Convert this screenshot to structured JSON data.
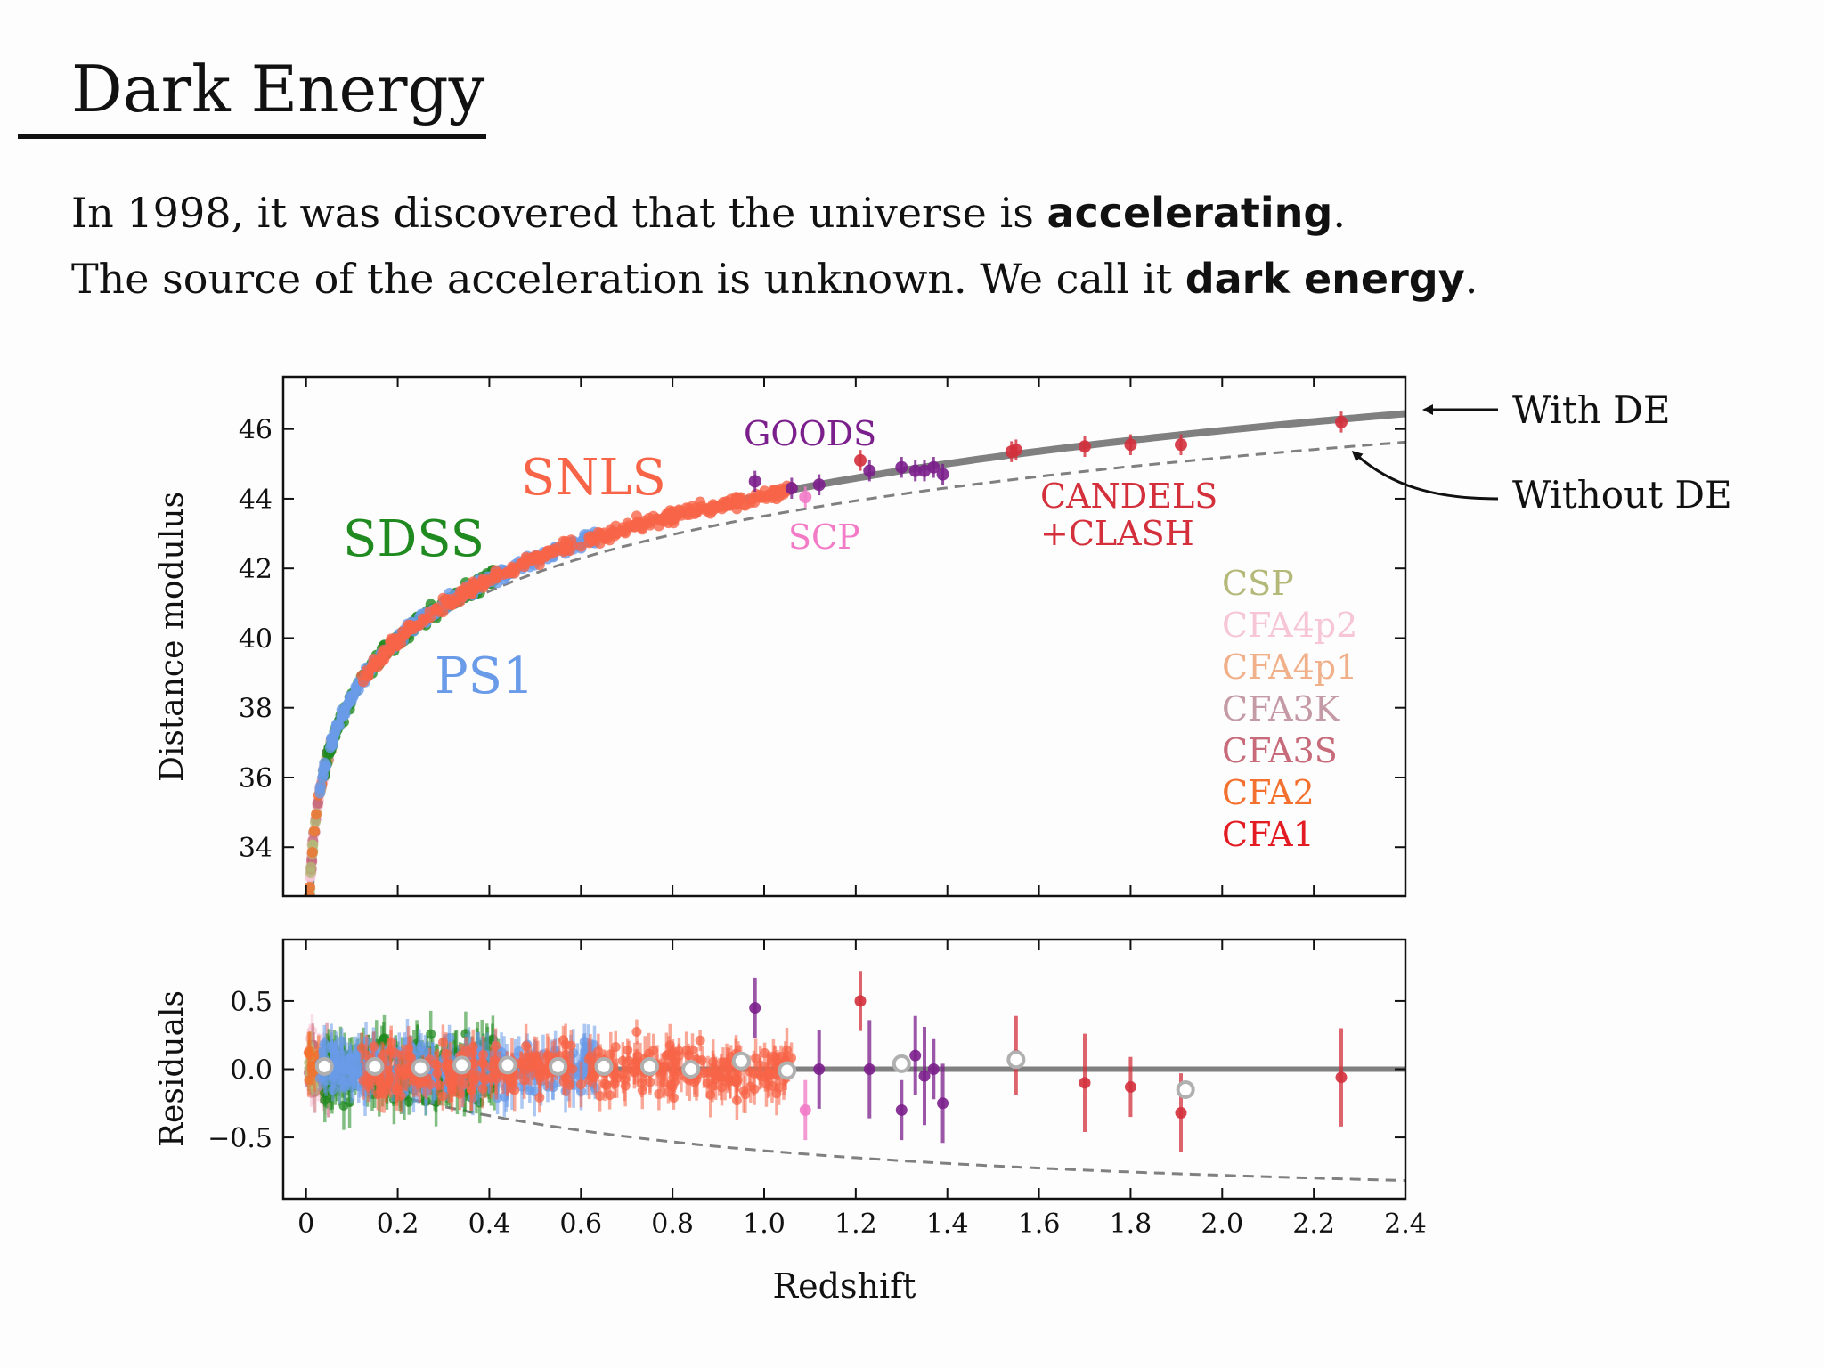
{
  "slide": {
    "title": "Dark Energy",
    "line1": {
      "pre": "In 1998, it was discovered that the universe is ",
      "bold": "accelerating",
      "post": "."
    },
    "line2": {
      "pre": "The source of the acceleration is unknown. We call it ",
      "bold": "dark energy",
      "post": "."
    }
  },
  "colors": {
    "SDSS": "#1f8a1f",
    "PS1": "#6a9be8",
    "SNLS": "#f76447",
    "GOODS": "#7b1f8c",
    "SCP": "#f27ac6",
    "CANDELS": "#d3303c",
    "CSP": "#b4b878",
    "CFA4p2": "#f6c6d6",
    "CFA4p1": "#f0b08a",
    "CFA3K": "#c49aa6",
    "CFA3S": "#c76a7a",
    "CFA2": "#f3702e",
    "CFA1": "#e31c24",
    "model": "#808080"
  },
  "chart_data": [
    {
      "type": "scatter",
      "panel": "top",
      "xlabel": "",
      "ylabel": "Distance modulus",
      "xlim": [
        -0.05,
        2.4
      ],
      "ylim": [
        32.6,
        47.5
      ],
      "yticks": [
        "34",
        "36",
        "38",
        "40",
        "42",
        "44",
        "46"
      ],
      "survey_labels": [
        {
          "text": "SDSS",
          "color_key": "SDSS"
        },
        {
          "text": "SNLS",
          "color_key": "SNLS"
        },
        {
          "text": "GOODS",
          "color_key": "GOODS"
        },
        {
          "text": "SCP",
          "color_key": "SCP"
        },
        {
          "text": "CANDELS",
          "color_key": "CANDELS"
        },
        {
          "text": "+CLASH",
          "color_key": "CANDELS"
        },
        {
          "text": "PS1",
          "color_key": "PS1"
        }
      ],
      "legend": [
        "CSP",
        "CFA4p2",
        "CFA4p1",
        "CFA3K",
        "CFA3S",
        "CFA2",
        "CFA1"
      ],
      "annotations": [
        "With DE",
        "Without DE"
      ],
      "series": [
        {
          "name": "CANDELS",
          "x": [
            1.21,
            1.54,
            1.55,
            1.7,
            1.8,
            1.91,
            2.26
          ],
          "y": [
            45.1,
            45.35,
            45.4,
            45.5,
            45.55,
            45.55,
            46.2
          ]
        },
        {
          "name": "GOODS",
          "x": [
            0.98,
            1.06,
            1.12,
            1.23,
            1.3,
            1.33,
            1.35,
            1.37,
            1.39
          ],
          "y": [
            44.5,
            44.3,
            44.4,
            44.8,
            44.9,
            44.8,
            44.8,
            44.9,
            44.7
          ]
        },
        {
          "name": "SCP",
          "x": [
            1.09
          ],
          "y": [
            44.05
          ]
        }
      ]
    },
    {
      "type": "scatter",
      "panel": "bottom",
      "xlabel": "Redshift",
      "ylabel": "Residuals",
      "xlim": [
        -0.05,
        2.4
      ],
      "ylim": [
        -0.95,
        0.95
      ],
      "xticks": [
        "0",
        "0.2",
        "0.4",
        "0.6",
        "0.8",
        "1.0",
        "1.2",
        "1.4",
        "1.6",
        "1.8",
        "2.0",
        "2.2",
        "2.4"
      ],
      "yticks": [
        "0.5",
        "0.0",
        "−0.5"
      ],
      "binned_means": {
        "x": [
          0.04,
          0.15,
          0.25,
          0.34,
          0.44,
          0.55,
          0.65,
          0.75,
          0.84,
          0.95,
          1.05,
          1.3,
          1.55,
          1.92
        ],
        "y": [
          0.02,
          0.02,
          0.01,
          0.03,
          0.03,
          0.02,
          0.02,
          0.02,
          0.0,
          0.06,
          -0.01,
          0.04,
          0.07,
          -0.15
        ]
      },
      "series": [
        {
          "name": "CANDELS",
          "x": [
            1.21,
            1.55,
            1.7,
            1.8,
            1.91,
            2.26
          ],
          "y": [
            0.5,
            0.1,
            -0.1,
            -0.13,
            -0.32,
            -0.06
          ]
        },
        {
          "name": "GOODS",
          "x": [
            0.98,
            1.12,
            1.23,
            1.3,
            1.33,
            1.35,
            1.37,
            1.39
          ],
          "y": [
            0.45,
            0.0,
            0.0,
            -0.3,
            0.1,
            -0.05,
            0.0,
            -0.25
          ]
        },
        {
          "name": "SCP",
          "x": [
            1.09
          ],
          "y": [
            -0.3
          ]
        }
      ]
    }
  ]
}
